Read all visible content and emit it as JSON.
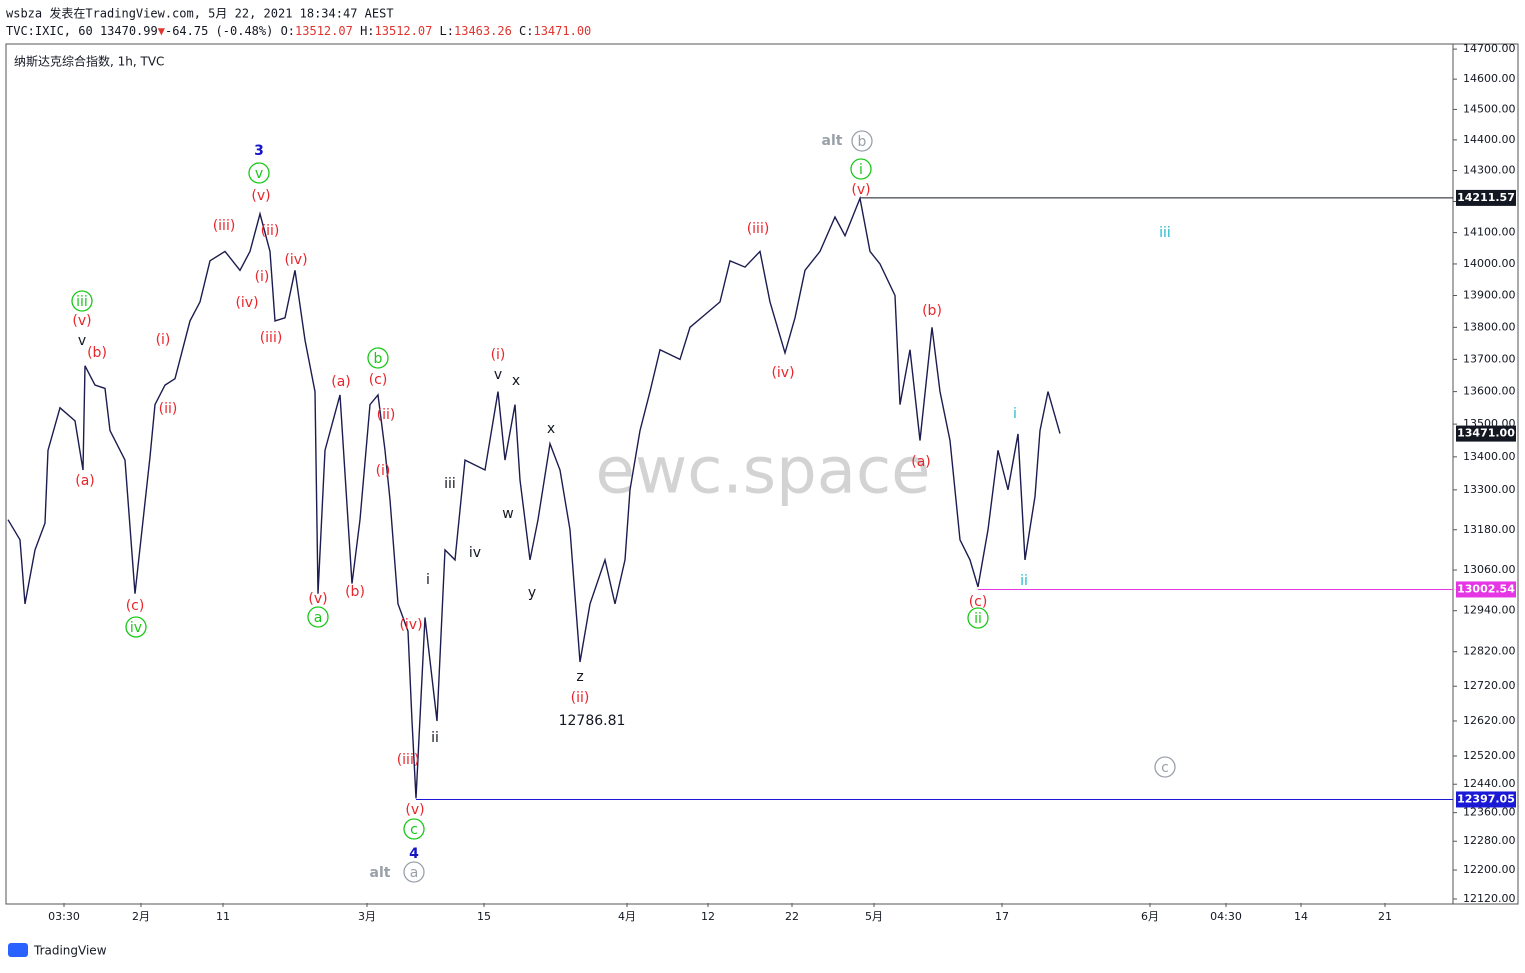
{
  "header": {
    "line1": "wsbza 发表在TradingView.com, 5月 22, 2021 18:34:47 AEST",
    "symbol": "TVC:IXIC, 60",
    "price": "13470.99",
    "arrow": "▼",
    "change": "-64.75 (-0.48%)",
    "o_label": "O:",
    "open": "13512.07",
    "h_label": "H:",
    "high": "13512.07",
    "l_label": "L:",
    "low": "13463.26",
    "c_label": "C:",
    "close": "13471.00"
  },
  "footer": "TradingView",
  "watermark": "ewc.space",
  "chart_data": {
    "type": "line",
    "title": "纳斯达克综合指数, 1h, TVC",
    "color": "#1c1c50",
    "log_scale": true,
    "grid": false,
    "xlim": [
      0,
      144.7
    ],
    "ylim": [
      12109,
      14717
    ],
    "xticks": [
      {
        "value": 5.8,
        "label": "03:30"
      },
      {
        "value": 13.5,
        "label": "2月"
      },
      {
        "value": 21.7,
        "label": "11"
      },
      {
        "value": 36.1,
        "label": "3月"
      },
      {
        "value": 47.8,
        "label": "15"
      },
      {
        "value": 62.1,
        "label": "4月"
      },
      {
        "value": 70.2,
        "label": "12"
      },
      {
        "value": 78.6,
        "label": "22"
      },
      {
        "value": 86.8,
        "label": "5月"
      },
      {
        "value": 99.6,
        "label": "17"
      },
      {
        "value": 114.4,
        "label": "6月"
      },
      {
        "value": 122.0,
        "label": "04:30"
      },
      {
        "value": 129.5,
        "label": "14"
      },
      {
        "value": 137.9,
        "label": "21"
      }
    ],
    "yticks": [
      {
        "value": 14700,
        "label": "14700.00"
      },
      {
        "value": 14600,
        "label": "14600.00"
      },
      {
        "value": 14500,
        "label": "14500.00"
      },
      {
        "value": 14400,
        "label": "14400.00"
      },
      {
        "value": 14300,
        "label": "14300.00"
      },
      {
        "value": 14200,
        "label": "14200.00"
      },
      {
        "value": 14100,
        "label": "14100.00"
      },
      {
        "value": 14000,
        "label": "14000.00"
      },
      {
        "value": 13900,
        "label": "13900.00"
      },
      {
        "value": 13800,
        "label": "13800.00"
      },
      {
        "value": 13700,
        "label": "13700.00"
      },
      {
        "value": 13600,
        "label": "13600.00"
      },
      {
        "value": 13500,
        "label": "13500.00"
      },
      {
        "value": 13400,
        "label": "13400.00"
      },
      {
        "value": 13300,
        "label": "13300.00"
      },
      {
        "value": 13180,
        "label": "13180.00"
      },
      {
        "value": 13060,
        "label": "13060.00"
      },
      {
        "value": 12940,
        "label": "12940.00"
      },
      {
        "value": 12820,
        "label": "12820.00"
      },
      {
        "value": 12720,
        "label": "12720.00"
      },
      {
        "value": 12620,
        "label": "12620.00"
      },
      {
        "value": 12520,
        "label": "12520.00"
      },
      {
        "value": 12440,
        "label": "12440.00"
      },
      {
        "value": 12360,
        "label": "12360.00"
      },
      {
        "value": 12280,
        "label": "12280.00"
      },
      {
        "value": 12200,
        "label": "12200.00"
      },
      {
        "value": 12120,
        "label": "12120.00"
      }
    ],
    "x": [
      0.2,
      1.4,
      1.9,
      2.9,
      3.9,
      4.2,
      5.4,
      6.9,
      7.7,
      7.9,
      8.9,
      9.9,
      10.4,
      11.9,
      12.9,
      14.4,
      14.9,
      15.9,
      16.9,
      18.4,
      19.4,
      20.4,
      21.9,
      23.4,
      24.4,
      25.4,
      26.4,
      26.9,
      27.9,
      28.9,
      29.9,
      30.9,
      31.2,
      31.9,
      33.4,
      34.6,
      35.4,
      36.4,
      37.2,
      37.9,
      38.4,
      39.2,
      40.2,
      40.6,
      41.0,
      41.9,
      43.1,
      43.9,
      44.9,
      45.9,
      47.9,
      49.2,
      49.9,
      50.9,
      51.4,
      52.4,
      53.2,
      54.4,
      55.4,
      56.4,
      57.4,
      58.4,
      59.9,
      60.9,
      61.9,
      62.4,
      63.4,
      64.4,
      65.4,
      67.4,
      68.4,
      69.9,
      71.4,
      72.4,
      73.9,
      75.4,
      76.4,
      77.9,
      78.9,
      79.9,
      81.4,
      82.9,
      83.9,
      85.4,
      86.4,
      87.4,
      88.9,
      89.4,
      90.4,
      91.4,
      92.6,
      93.4,
      94.4,
      95.4,
      96.4,
      97.2,
      98.2,
      99.2,
      100.2,
      101.2,
      101.9,
      102.9,
      103.4,
      104.2,
      105.4
    ],
    "values": [
      13210,
      13150,
      12960,
      13120,
      13200,
      13420,
      13550,
      13510,
      13360,
      13680,
      13620,
      13610,
      13480,
      13390,
      12990,
      13400,
      13560,
      13620,
      13640,
      13820,
      13880,
      14010,
      14040,
      13980,
      14040,
      14160,
      14040,
      13820,
      13830,
      13980,
      13760,
      13600,
      12990,
      13420,
      13590,
      13020,
      13210,
      13560,
      13590,
      13420,
      13270,
      12960,
      12880,
      12620,
      12400,
      12920,
      12620,
      13120,
      13090,
      13390,
      13360,
      13600,
      13390,
      13560,
      13330,
      13090,
      13210,
      13440,
      13360,
      13180,
      12790,
      12960,
      13090,
      12960,
      13090,
      13300,
      13480,
      13600,
      13730,
      13700,
      13800,
      13840,
      13880,
      14010,
      13990,
      14040,
      13880,
      13720,
      13830,
      13980,
      14040,
      14150,
      14090,
      14210,
      14040,
      14000,
      13900,
      13560,
      13730,
      13450,
      13800,
      13600,
      13450,
      13150,
      13090,
      13010,
      13180,
      13420,
      13300,
      13470,
      13090,
      13280,
      13480,
      13600,
      13471
    ],
    "levels": [
      {
        "value": 14211.57,
        "color": "#131722"
      },
      {
        "value": 13002.54,
        "color": "#e535e5"
      },
      {
        "value": 12397.05,
        "color": "#1a1ad6"
      }
    ],
    "last_price": {
      "value": 13471,
      "label": "13471.00"
    },
    "annotations": [
      "iii",
      "(v)",
      "v",
      "(b)",
      "(a)",
      "(c)",
      "iv",
      "(i)",
      "(ii)",
      "3",
      "v",
      "(v)",
      "(iii)",
      "(ii)",
      "(i)",
      "(iv)",
      "(iv)",
      "(iii)",
      "(a)",
      "b",
      "(c)",
      "(ii)",
      "(i)",
      "(v)",
      "a",
      "(b)",
      "(iv)",
      "i",
      "ii",
      "(iii)",
      "(v)",
      "c",
      "4",
      "alt",
      "a",
      "iii",
      "iv",
      "(i)",
      "v",
      "x",
      "w",
      "x",
      "y",
      "z",
      "(ii)",
      "12786.81",
      "(iii)",
      "(iv)",
      "alt",
      "b",
      "i",
      "(v)",
      "(b)",
      "(a)",
      "(c)",
      "ii",
      "i",
      "ii",
      "iii",
      "c"
    ]
  }
}
